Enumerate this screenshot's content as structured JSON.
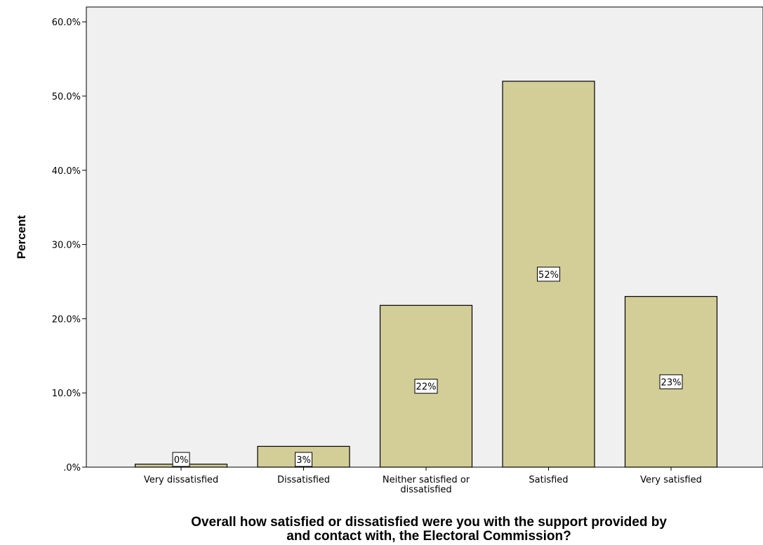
{
  "chart_data": {
    "type": "bar",
    "categories": [
      "Very dissatisfied",
      "Dissatisfied",
      "Neither satisfied or dissatisfied",
      "Satisfied",
      "Very satisfied"
    ],
    "category_label_lines": [
      [
        "Very dissatisfied"
      ],
      [
        "Dissatisfied"
      ],
      [
        "Neither satisfied or",
        "dissatisfied"
      ],
      [
        "Satisfied"
      ],
      [
        "Very satisfied"
      ]
    ],
    "values": [
      0.4,
      2.8,
      21.8,
      52.0,
      23.0
    ],
    "data_labels": [
      "0%",
      "3%",
      "22%",
      "52%",
      "23%"
    ],
    "ylabel": "Percent",
    "xlabel_lines": [
      "Overall how satisfied or dissatisfied were you with the support provided by",
      "and contact with, the Electoral Commission?"
    ],
    "ylim": [
      0,
      62
    ],
    "yticks": [
      0,
      10,
      20,
      30,
      40,
      50,
      60
    ],
    "ytick_labels": [
      ".0%",
      "10.0%",
      "20.0%",
      "30.0%",
      "40.0%",
      "50.0%",
      "60.0%"
    ],
    "bar_color": "#d3ce97",
    "plot_background": "#f0f0f0",
    "grid": false,
    "legend": "none"
  }
}
